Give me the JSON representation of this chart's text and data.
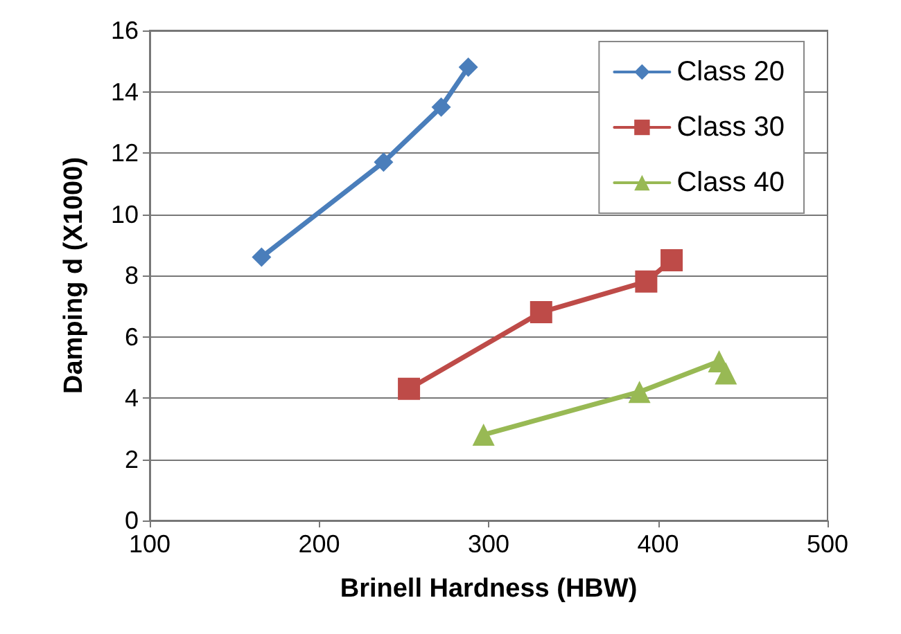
{
  "chart_data": {
    "type": "line",
    "xlabel": "Brinell Hardness (HBW)",
    "ylabel": "Damping d (X1000)",
    "xlim": [
      100,
      500
    ],
    "xticks": [
      100,
      200,
      300,
      400,
      500
    ],
    "ylim": [
      0,
      16
    ],
    "yticks": [
      0,
      2,
      4,
      6,
      8,
      10,
      12,
      14,
      16
    ],
    "grid": "y",
    "legend": "top right",
    "line_style": "solid",
    "series": [
      {
        "name": "Class 20",
        "color": "#4a7ebb",
        "marker": "diamond",
        "x": [
          166,
          238,
          272,
          288
        ],
        "values": [
          8.6,
          11.7,
          13.5,
          14.8
        ]
      },
      {
        "name": "Class 30",
        "color": "#be4b48",
        "marker": "square",
        "x": [
          253,
          331,
          393,
          408
        ],
        "values": [
          4.3,
          6.8,
          7.8,
          8.5
        ]
      },
      {
        "name": "Class 40",
        "color": "#98b954",
        "marker": "triangle",
        "x": [
          297,
          389,
          436,
          440
        ],
        "values": [
          2.8,
          4.2,
          5.2,
          4.8
        ]
      }
    ]
  }
}
